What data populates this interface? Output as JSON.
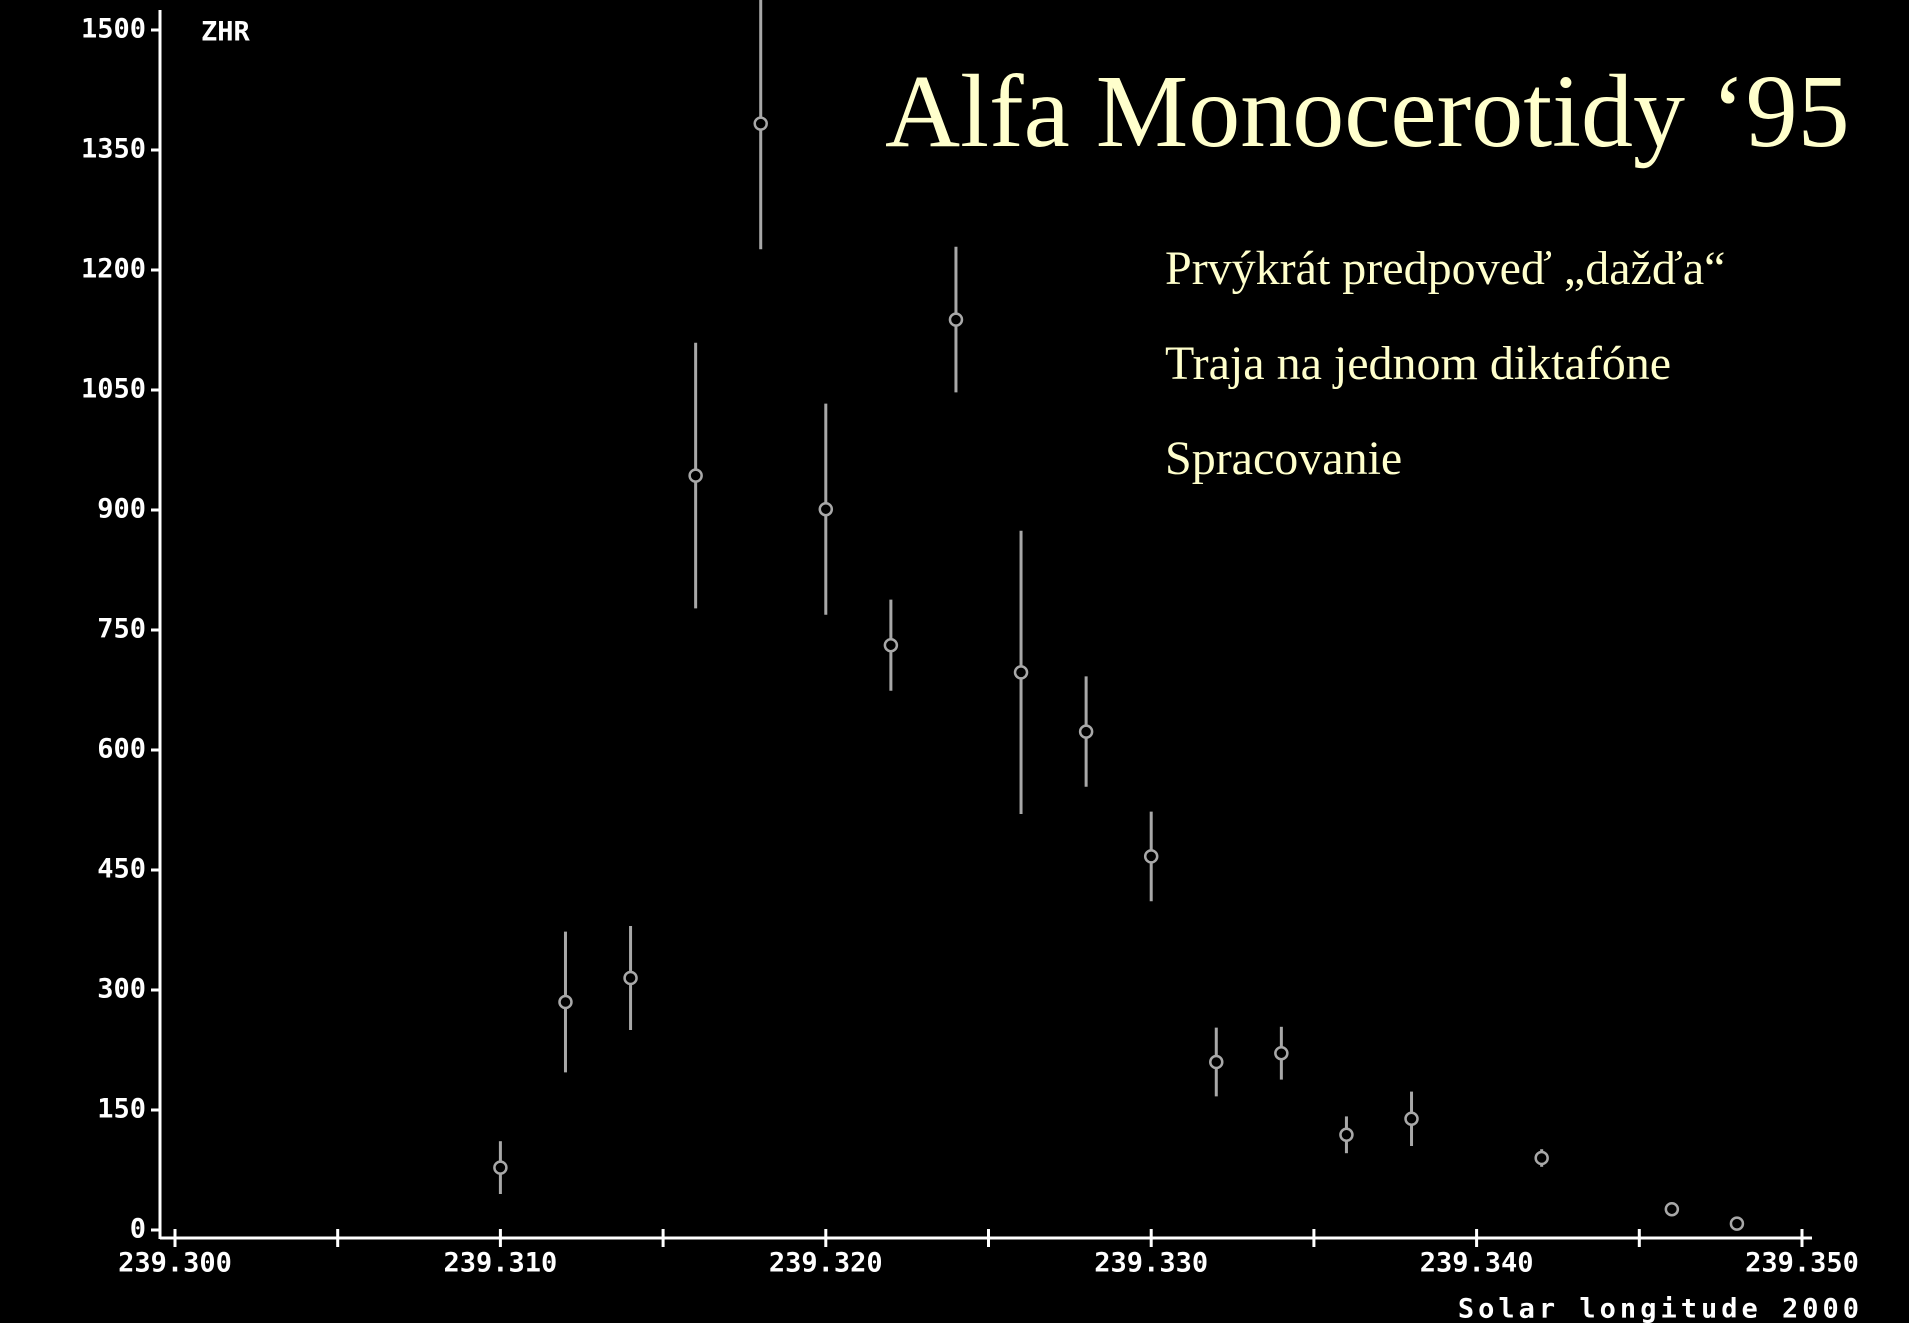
{
  "chart_data": {
    "type": "scatter",
    "title": "Alfa Monocerotidy ‘95",
    "annotations": [
      "Prvýkrát predpoveď „dažďa“",
      "Traja na jednom diktafóne",
      "Spracovanie"
    ],
    "xlabel": "Solar longitude 2000",
    "ylabel": "ZHR",
    "color": "#a8a8a8",
    "x": [
      239.31,
      239.312,
      239.314,
      239.316,
      239.318,
      239.32,
      239.322,
      239.324,
      239.326,
      239.328,
      239.33,
      239.332,
      239.334,
      239.336,
      239.338,
      239.342,
      239.346,
      239.348
    ],
    "values": [
      78,
      285,
      315,
      943,
      1383,
      901,
      731,
      1138,
      697,
      623,
      467,
      210,
      221,
      119,
      139,
      90,
      26,
      8
    ],
    "errors": [
      33,
      88,
      65,
      166,
      157,
      132,
      57,
      91,
      177,
      69,
      56,
      43,
      33,
      23,
      34,
      11,
      4,
      3
    ],
    "xlim": [
      239.3,
      239.35
    ],
    "ylim": [
      0,
      1500
    ],
    "xticks": [
      {
        "value": 239.3,
        "label": "239.300"
      },
      {
        "value": 239.31,
        "label": "239.310"
      },
      {
        "value": 239.32,
        "label": "239.320"
      },
      {
        "value": 239.33,
        "label": "239.330"
      },
      {
        "value": 239.34,
        "label": "239.340"
      },
      {
        "value": 239.35,
        "label": "239.350"
      }
    ],
    "yticks": [
      0,
      150,
      300,
      450,
      600,
      750,
      900,
      1050,
      1200,
      1350,
      1500
    ]
  }
}
